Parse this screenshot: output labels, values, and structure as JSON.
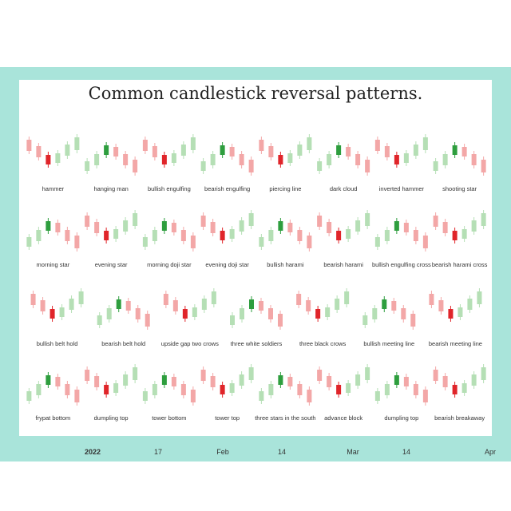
{
  "title": "Common candlestick reversal patterns.",
  "colors": {
    "frame": "#a9e4da",
    "bull": "#b5dfb5",
    "bull_strong": "#2e9e3e",
    "bear": "#f3a7a7",
    "bear_strong": "#e0252a",
    "neutral": "#666666"
  },
  "chart_data": {
    "type": "candlestick-pattern-grid",
    "title": "Common candlestick reversal patterns.",
    "rows": [
      [
        "hammer",
        "hanging man",
        "bullish engulfing",
        "bearish engulfing",
        "piercing line",
        "dark cloud",
        "inverted hammer",
        "shooting star"
      ],
      [
        "morning star",
        "evening star",
        "morning doji star",
        "evening doji star",
        "bullish harami",
        "bearish harami",
        "bullish engulfing cross",
        "bearish harami cross"
      ],
      [
        "bullish belt hold",
        "bearish belt hold",
        "upside gap two crows",
        "three white soldiers",
        "three black crows",
        "bullish meeting line",
        "bearish meeting line"
      ],
      [
        "frypat bottom",
        "dumpling top",
        "tower bottom",
        "tower top",
        "three stars in the south",
        "advance block",
        "dumpling top",
        "bearish breakaway"
      ]
    ],
    "x_ticks": [
      "2022",
      "17",
      "Feb",
      "14",
      "Mar",
      "14",
      "Apr"
    ]
  }
}
